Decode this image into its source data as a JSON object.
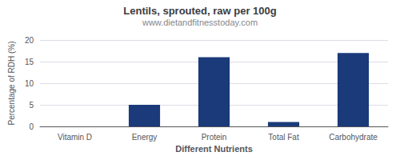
{
  "chart_data": {
    "type": "bar",
    "title": "Lentils, sprouted, raw per 100g",
    "subtitle": "www.dietandfitnesstoday.com",
    "xlabel": "Different Nutrients",
    "ylabel": "Percentage of RDH (%)",
    "categories": [
      "Vitamin D",
      "Energy",
      "Protein",
      "Total Fat",
      "Carbohydrate"
    ],
    "values": [
      0,
      5,
      16,
      1,
      17
    ],
    "color": "#1a3a7a",
    "ylim": [
      0,
      20
    ],
    "yticks": [
      0,
      5,
      10,
      15,
      20
    ],
    "grid": true
  }
}
